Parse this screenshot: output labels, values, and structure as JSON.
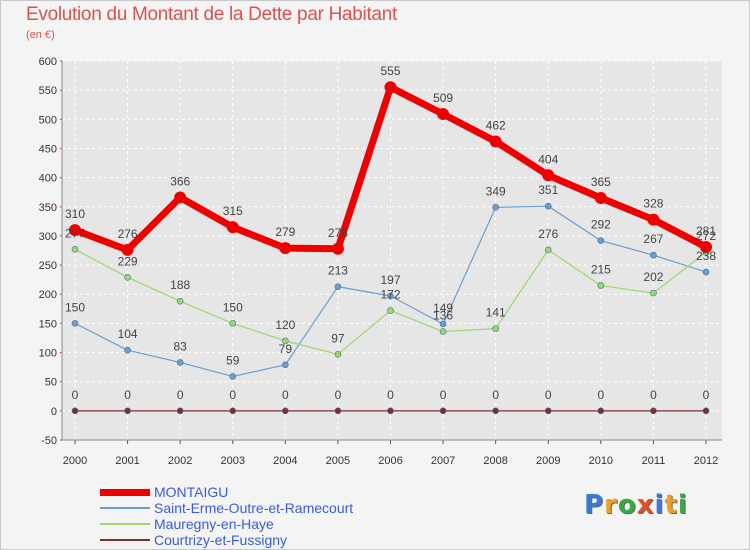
{
  "header": {
    "title": "Evolution du Montant de la Dette par Habitant",
    "unit": "(en €)"
  },
  "logo": {
    "text": "Proxiti",
    "letters": [
      "P",
      "r",
      "o",
      "x",
      "i",
      "t",
      "i"
    ],
    "colors": [
      "#3a7bd5",
      "#f0a020",
      "#3aa845",
      "#e05020",
      "#3a7bd5",
      "#f0a020",
      "#3aa845"
    ]
  },
  "chart_data": {
    "type": "line",
    "title": "Evolution du Montant de la Dette par Habitant",
    "ylabel": "(en €)",
    "xlabel": "",
    "x": [
      "2000",
      "2001",
      "2002",
      "2003",
      "2004",
      "2005",
      "2006",
      "2007",
      "2008",
      "2009",
      "2010",
      "2011",
      "2012"
    ],
    "ylim": [
      -50,
      600
    ],
    "yticks": [
      "-50",
      "0",
      "50",
      "100",
      "150",
      "200",
      "250",
      "300",
      "350",
      "400",
      "450",
      "500",
      "550",
      "600"
    ],
    "grid": true,
    "legend_position": "bottom-left",
    "series": [
      {
        "name": "MONTAIGU",
        "color": "#ee0000",
        "values": [
          310,
          276,
          366,
          315,
          279,
          278,
          555,
          509,
          462,
          404,
          365,
          328,
          281
        ],
        "labels": [
          "310",
          "276",
          "366",
          "315",
          "279",
          "278",
          "555",
          "509",
          "462",
          "404",
          "365",
          "328",
          "281"
        ]
      },
      {
        "name": "Saint-Erme-Outre-et-Ramecourt",
        "color": "#6a9ed0",
        "values": [
          150,
          104,
          83,
          59,
          79,
          213,
          197,
          149,
          349,
          351,
          292,
          267,
          238
        ],
        "labels": [
          "150",
          "104",
          "83",
          "59",
          "79",
          "213",
          "197",
          "149",
          "349",
          "351",
          "292",
          "267",
          "238"
        ]
      },
      {
        "name": "Mauregny-en-Haye",
        "color": "#9ad870",
        "values": [
          277,
          229,
          188,
          150,
          120,
          97,
          172,
          136,
          141,
          276,
          215,
          202,
          272
        ],
        "labels": [
          "277",
          "229",
          "188",
          "150",
          "120",
          "97",
          "172",
          "136",
          "141",
          "276",
          "215",
          "202",
          "272"
        ]
      },
      {
        "name": "Courtrizy-et-Fussigny",
        "color": "#7a3030",
        "values": [
          0,
          0,
          0,
          0,
          0,
          0,
          0,
          0,
          0,
          0,
          0,
          0,
          0
        ],
        "labels": [
          "0",
          "0",
          "0",
          "0",
          "0",
          "0",
          "0",
          "0",
          "0",
          "0",
          "0",
          "0",
          "0"
        ]
      }
    ]
  }
}
